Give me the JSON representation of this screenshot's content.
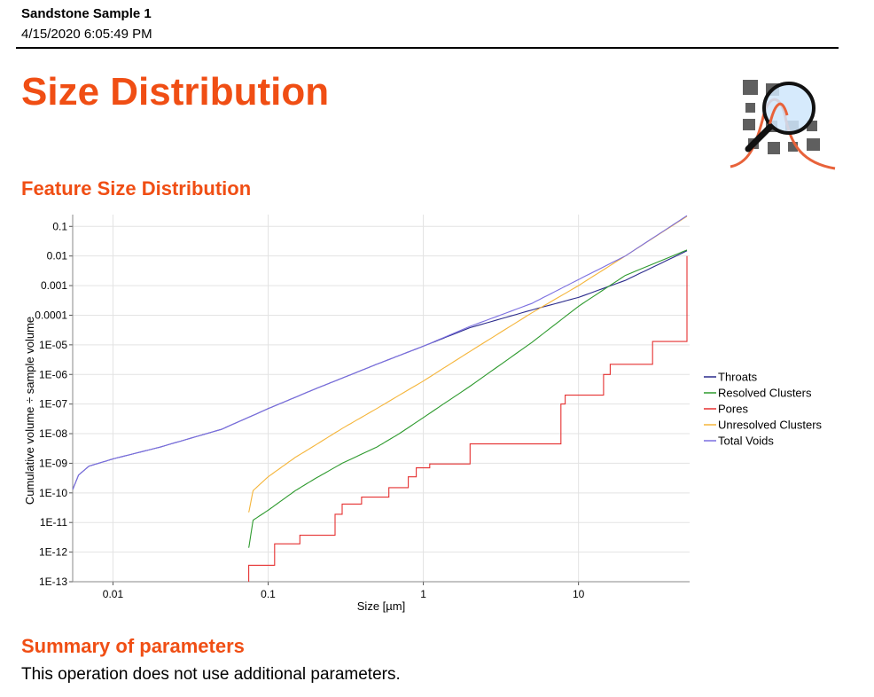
{
  "header": {
    "sample_name": "Sandstone Sample 1",
    "timestamp": "4/15/2020 6:05:49 PM"
  },
  "page_title": "Size Distribution",
  "logo": {
    "icon": "size-distribution-magnifier-icon",
    "colors": {
      "squares": "#5f5f5f",
      "curve": "#e8623a",
      "lens": "#cfe6fb"
    }
  },
  "sections": {
    "feature_title": "Feature Size Distribution",
    "summary_title": "Summary of parameters",
    "summary_text": "This operation does not use additional parameters."
  },
  "colors": {
    "accent": "#f04e14"
  },
  "chart_data": {
    "type": "line",
    "title": "",
    "xlabel": "Size [µm]",
    "ylabel": "Cumulative volume ÷ sample volume",
    "x_scale": "log",
    "y_scale": "log",
    "xlim": [
      0.0055,
      52
    ],
    "ylim": [
      1e-13,
      0.25
    ],
    "x_ticks": [
      {
        "value": 0.01,
        "label": "0.01"
      },
      {
        "value": 0.1,
        "label": "0.1"
      },
      {
        "value": 1,
        "label": "1"
      },
      {
        "value": 10,
        "label": "10"
      }
    ],
    "y_ticks": [
      {
        "value": 0.1,
        "label": "0.1"
      },
      {
        "value": 0.01,
        "label": "0.01"
      },
      {
        "value": 0.001,
        "label": "0.001"
      },
      {
        "value": 0.0001,
        "label": "0.0001"
      },
      {
        "value": 1e-05,
        "label": "1E-05"
      },
      {
        "value": 1e-06,
        "label": "1E-06"
      },
      {
        "value": 1e-07,
        "label": "1E-07"
      },
      {
        "value": 1e-08,
        "label": "1E-08"
      },
      {
        "value": 1e-09,
        "label": "1E-09"
      },
      {
        "value": 1e-10,
        "label": "1E-10"
      },
      {
        "value": 1e-11,
        "label": "1E-11"
      },
      {
        "value": 1e-12,
        "label": "1E-12"
      },
      {
        "value": 1e-13,
        "label": "1E-13"
      }
    ],
    "grid": true,
    "legend_position": "right",
    "series": [
      {
        "name": "Throats",
        "color": "#2b2b8c",
        "step": false,
        "points": [
          [
            0.0055,
            1.3e-10
          ],
          [
            0.006,
            4e-10
          ],
          [
            0.007,
            8e-10
          ],
          [
            0.01,
            1.4e-09
          ],
          [
            0.02,
            3.5e-09
          ],
          [
            0.05,
            1.4e-08
          ],
          [
            0.1,
            7e-08
          ],
          [
            0.2,
            3.2e-07
          ],
          [
            0.5,
            2.2e-06
          ],
          [
            1,
            9e-06
          ],
          [
            2,
            3.8e-05
          ],
          [
            5,
            0.00015
          ],
          [
            10,
            0.0004
          ],
          [
            20,
            0.0015
          ],
          [
            50,
            0.015
          ]
        ]
      },
      {
        "name": "Resolved Clusters",
        "color": "#2e9a2e",
        "step": false,
        "points": [
          [
            0.075,
            1.4e-12
          ],
          [
            0.08,
            1.2e-11
          ],
          [
            0.1,
            2.6e-11
          ],
          [
            0.15,
            1.2e-10
          ],
          [
            0.2,
            3e-10
          ],
          [
            0.3,
            1e-09
          ],
          [
            0.5,
            3.5e-09
          ],
          [
            0.7,
            1e-08
          ],
          [
            1,
            3.5e-08
          ],
          [
            2,
            4e-07
          ],
          [
            5,
            1.2e-05
          ],
          [
            10,
            0.0002
          ],
          [
            20,
            0.0022
          ],
          [
            50,
            0.016
          ]
        ]
      },
      {
        "name": "Pores",
        "color": "#e53030",
        "step": true,
        "points": [
          [
            0.075,
            1e-13
          ],
          [
            0.075,
            3.6e-13
          ],
          [
            0.11,
            3.6e-13
          ],
          [
            0.11,
            1.9e-12
          ],
          [
            0.16,
            1.9e-12
          ],
          [
            0.16,
            3.7e-12
          ],
          [
            0.27,
            3.7e-12
          ],
          [
            0.27,
            1.9e-11
          ],
          [
            0.3,
            1.9e-11
          ],
          [
            0.3,
            4.2e-11
          ],
          [
            0.4,
            4.2e-11
          ],
          [
            0.4,
            7.2e-11
          ],
          [
            0.6,
            7.2e-11
          ],
          [
            0.6,
            1.5e-10
          ],
          [
            0.8,
            1.5e-10
          ],
          [
            0.8,
            3.5e-10
          ],
          [
            0.9,
            3.5e-10
          ],
          [
            0.9,
            7e-10
          ],
          [
            1.1,
            7e-10
          ],
          [
            1.1,
            9.5e-10
          ],
          [
            2,
            9.5e-10
          ],
          [
            2,
            4.5e-09
          ],
          [
            7.7,
            4.5e-09
          ],
          [
            7.7,
            1e-07
          ],
          [
            8.2,
            1e-07
          ],
          [
            8.2,
            2e-07
          ],
          [
            14.5,
            2e-07
          ],
          [
            14.5,
            1e-06
          ],
          [
            16,
            1e-06
          ],
          [
            16,
            2.2e-06
          ],
          [
            30,
            2.2e-06
          ],
          [
            30,
            1.3e-05
          ],
          [
            50,
            1.3e-05
          ],
          [
            50,
            0.01
          ]
        ]
      },
      {
        "name": "Unresolved Clusters",
        "color": "#f5b53a",
        "step": false,
        "points": [
          [
            0.075,
            2.2e-11
          ],
          [
            0.08,
            1.2e-10
          ],
          [
            0.1,
            3.5e-10
          ],
          [
            0.15,
            1.6e-09
          ],
          [
            0.2,
            4e-09
          ],
          [
            0.3,
            1.5e-08
          ],
          [
            0.5,
            7e-08
          ],
          [
            1,
            6e-07
          ],
          [
            2,
            6e-06
          ],
          [
            5,
            0.00012
          ],
          [
            10,
            0.001
          ],
          [
            20,
            0.01
          ],
          [
            50,
            0.22
          ]
        ]
      },
      {
        "name": "Total Voids",
        "color": "#7b6fe0",
        "step": false,
        "points": [
          [
            0.0055,
            1.3e-10
          ],
          [
            0.006,
            4e-10
          ],
          [
            0.007,
            8e-10
          ],
          [
            0.01,
            1.4e-09
          ],
          [
            0.02,
            3.5e-09
          ],
          [
            0.05,
            1.4e-08
          ],
          [
            0.1,
            7e-08
          ],
          [
            0.2,
            3.2e-07
          ],
          [
            0.5,
            2.2e-06
          ],
          [
            1,
            9e-06
          ],
          [
            2,
            4.2e-05
          ],
          [
            5,
            0.00025
          ],
          [
            10,
            0.0016
          ],
          [
            20,
            0.01
          ],
          [
            50,
            0.23
          ]
        ]
      }
    ]
  }
}
